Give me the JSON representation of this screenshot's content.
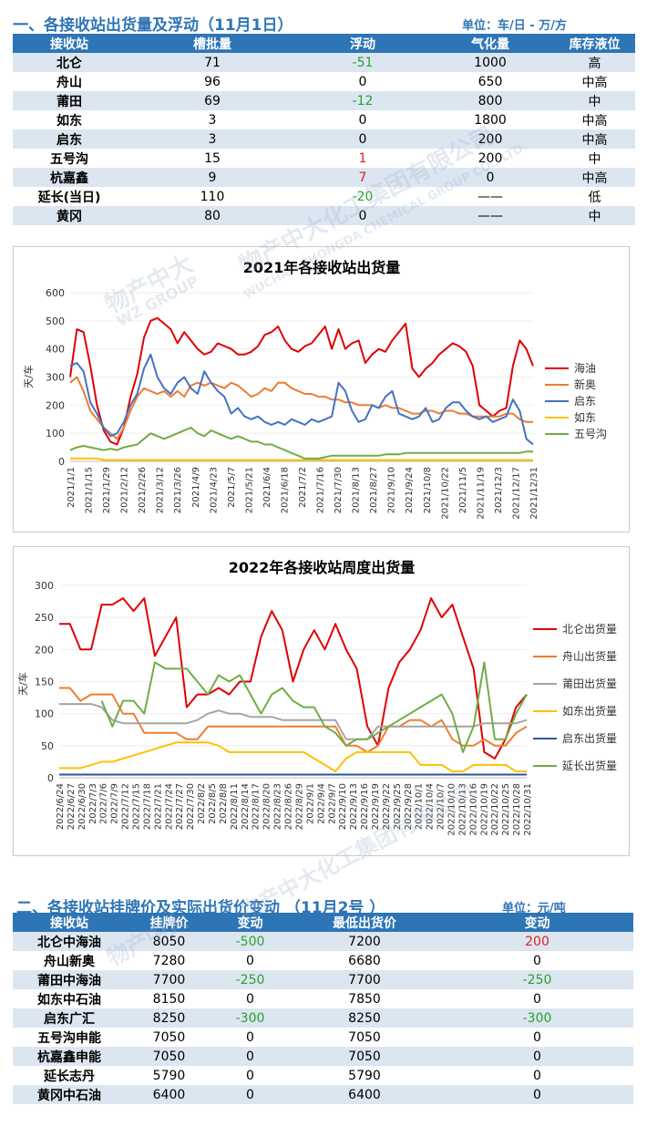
{
  "section1": {
    "title": "一、各接收站出货量及浮动（11月1日）",
    "unit": "单位：车/日 - 万/方",
    "headers": [
      "接收站",
      "槽批量",
      "浮动",
      "气化量",
      "库存液位"
    ],
    "rows": [
      {
        "name": "北仑",
        "volume": "71",
        "change": "-51",
        "change_sign": "neg",
        "gas": "1000",
        "level": "高"
      },
      {
        "name": "舟山",
        "volume": "96",
        "change": "0",
        "change_sign": "zero",
        "gas": "650",
        "level": "中高"
      },
      {
        "name": "莆田",
        "volume": "69",
        "change": "-12",
        "change_sign": "neg",
        "gas": "800",
        "level": "中"
      },
      {
        "name": "如东",
        "volume": "3",
        "change": "0",
        "change_sign": "zero",
        "gas": "1800",
        "level": "中高"
      },
      {
        "name": "启东",
        "volume": "3",
        "change": "0",
        "change_sign": "zero",
        "gas": "200",
        "level": "中高"
      },
      {
        "name": "五号沟",
        "volume": "15",
        "change": "1",
        "change_sign": "pos",
        "gas": "200",
        "level": "中"
      },
      {
        "name": "杭嘉鑫",
        "volume": "9",
        "change": "7",
        "change_sign": "pos",
        "gas": "0",
        "level": "中高"
      },
      {
        "name": "延长(当日)",
        "volume": "110",
        "change": "-20",
        "change_sign": "neg",
        "gas": "——",
        "level": "低"
      },
      {
        "name": "黄冈",
        "volume": "80",
        "change": "0",
        "change_sign": "zero",
        "gas": "——",
        "level": "中"
      }
    ]
  },
  "watermark": {
    "brand": "物产中大",
    "group": "WZ GROUP",
    "company": "物产中大化工集团有限公司",
    "company_en": "WUCHAN ZHONGDA CHEMICAL GROUP CO., LTD."
  },
  "chart_data": [
    {
      "type": "line",
      "title": "2021年各接收站出货量",
      "ylabel": "天/车",
      "ylim": [
        0,
        600
      ],
      "yticks": [
        0,
        100,
        200,
        300,
        400,
        500,
        600
      ],
      "xticks": [
        "2021/1/1",
        "2021/1/15",
        "2021/1/29",
        "2021/2/12",
        "2021/2/26",
        "2021/3/12",
        "2021/3/26",
        "2021/4/9",
        "2021/4/23",
        "2021/5/7",
        "2021/5/21",
        "2021/6/4",
        "2021/6/18",
        "2021/7/2",
        "2021/7/16",
        "2021/7/30",
        "2021/8/13",
        "2021/8/27",
        "2021/9/10",
        "2021/9/24",
        "2021/10/8",
        "2021/10/22",
        "2021/11/5",
        "2021/11/19",
        "2021/12/3",
        "2021/12/17",
        "2021/12/31"
      ],
      "legend_position": "right",
      "series": [
        {
          "name": "海油",
          "color": "#e00000",
          "values": [
            300,
            470,
            460,
            340,
            200,
            110,
            70,
            60,
            120,
            230,
            310,
            440,
            500,
            510,
            490,
            470,
            420,
            460,
            430,
            400,
            380,
            390,
            420,
            410,
            400,
            380,
            380,
            390,
            410,
            450,
            460,
            480,
            430,
            400,
            390,
            410,
            420,
            450,
            480,
            400,
            470,
            400,
            420,
            430,
            350,
            380,
            400,
            390,
            430,
            460,
            490,
            330,
            300,
            330,
            350,
            380,
            400,
            420,
            410,
            390,
            340,
            200,
            180,
            160,
            180,
            190,
            340,
            430,
            400,
            340
          ]
        },
        {
          "name": "新奥",
          "color": "#ed7d31",
          "values": [
            280,
            300,
            250,
            180,
            150,
            120,
            100,
            80,
            120,
            180,
            230,
            260,
            250,
            240,
            250,
            230,
            250,
            230,
            270,
            280,
            270,
            280,
            270,
            260,
            280,
            270,
            250,
            230,
            240,
            260,
            250,
            280,
            280,
            260,
            250,
            240,
            240,
            230,
            230,
            220,
            220,
            210,
            210,
            200,
            200,
            200,
            190,
            200,
            190,
            190,
            180,
            170,
            170,
            180,
            180,
            170,
            180,
            180,
            170,
            170,
            160,
            160,
            160,
            160,
            160,
            170,
            170,
            150,
            140,
            140
          ]
        },
        {
          "name": "启东",
          "color": "#4472c4",
          "values": [
            340,
            350,
            320,
            210,
            170,
            120,
            90,
            100,
            140,
            200,
            240,
            330,
            380,
            300,
            260,
            240,
            280,
            300,
            260,
            240,
            320,
            280,
            250,
            230,
            170,
            190,
            160,
            150,
            160,
            140,
            130,
            140,
            130,
            150,
            140,
            130,
            150,
            140,
            150,
            160,
            280,
            250,
            180,
            140,
            150,
            200,
            190,
            230,
            250,
            170,
            160,
            150,
            160,
            190,
            140,
            150,
            190,
            210,
            210,
            180,
            160,
            150,
            160,
            140,
            150,
            160,
            220,
            180,
            80,
            60
          ]
        },
        {
          "name": "如东",
          "color": "#ffc000",
          "values": [
            10,
            10,
            10,
            10,
            10,
            5,
            5,
            5,
            5,
            5,
            5,
            5,
            5,
            5,
            5,
            5,
            5,
            5,
            5,
            5,
            5,
            5,
            5,
            5,
            5,
            5,
            5,
            5,
            5,
            5,
            5,
            5,
            5,
            5,
            5,
            5,
            5,
            5,
            5,
            5,
            5,
            5,
            5,
            5,
            5,
            5,
            5,
            5,
            5,
            5,
            5,
            5,
            5,
            5,
            5,
            5,
            5,
            5,
            5,
            5,
            5,
            5,
            5,
            5,
            5,
            5,
            5,
            5,
            5,
            5
          ]
        },
        {
          "name": "五号沟",
          "color": "#70ad47",
          "values": [
            40,
            50,
            55,
            50,
            45,
            40,
            45,
            40,
            50,
            55,
            60,
            80,
            100,
            90,
            80,
            90,
            100,
            110,
            120,
            100,
            90,
            110,
            100,
            90,
            80,
            90,
            80,
            70,
            70,
            60,
            60,
            50,
            40,
            30,
            20,
            10,
            10,
            10,
            15,
            20,
            20,
            20,
            20,
            20,
            20,
            20,
            20,
            25,
            25,
            25,
            30,
            30,
            30,
            30,
            30,
            30,
            30,
            30,
            30,
            30,
            30,
            30,
            30,
            30,
            30,
            30,
            30,
            30,
            35,
            35
          ]
        }
      ]
    },
    {
      "type": "line",
      "title": "2022年各接收站周度出货量",
      "ylabel": "天/车",
      "ylim": [
        0,
        300
      ],
      "yticks": [
        0,
        50,
        100,
        150,
        200,
        250,
        300
      ],
      "xticks": [
        "2022/6/24",
        "2022/6/27",
        "2022/6/30",
        "2022/7/3",
        "2022/7/6",
        "2022/7/9",
        "2022/7/12",
        "2022/7/15",
        "2022/7/18",
        "2022/7/21",
        "2022/7/24",
        "2022/7/27",
        "2022/7/30",
        "2022/8/2",
        "2022/8/5",
        "2022/8/8",
        "2022/8/11",
        "2022/8/14",
        "2022/8/17",
        "2022/8/20",
        "2022/8/23",
        "2022/8/26",
        "2022/8/29",
        "2022/9/1",
        "2022/9/4",
        "2022/9/7",
        "2022/9/10",
        "2022/9/13",
        "2022/9/16",
        "2022/9/19",
        "2022/9/22",
        "2022/9/25",
        "2022/9/28",
        "2022/10/1",
        "2022/10/4",
        "2022/10/7",
        "2022/10/10",
        "2022/10/13",
        "2022/10/16",
        "2022/10/19",
        "2022/10/22",
        "2022/10/25",
        "2022/10/28",
        "2022/10/31"
      ],
      "legend_position": "right",
      "series": [
        {
          "name": "北仑出货量",
          "color": "#e00000",
          "values": [
            240,
            240,
            200,
            200,
            270,
            270,
            280,
            260,
            280,
            190,
            220,
            250,
            110,
            130,
            130,
            140,
            130,
            150,
            150,
            220,
            260,
            230,
            150,
            200,
            230,
            200,
            240,
            200,
            170,
            80,
            50,
            140,
            180,
            200,
            230,
            280,
            250,
            270,
            220,
            170,
            40,
            30,
            60,
            110,
            130
          ]
        },
        {
          "name": "舟山出货量",
          "color": "#ed7d31",
          "values": [
            140,
            140,
            120,
            130,
            130,
            130,
            100,
            100,
            70,
            70,
            70,
            70,
            60,
            60,
            80,
            80,
            80,
            80,
            80,
            80,
            80,
            80,
            80,
            80,
            80,
            80,
            80,
            50,
            50,
            40,
            50,
            80,
            80,
            90,
            90,
            80,
            90,
            60,
            50,
            50,
            60,
            50,
            50,
            70,
            80
          ]
        },
        {
          "name": "莆田出货量",
          "color": "#a5a5a5",
          "values": [
            115,
            115,
            115,
            115,
            110,
            90,
            85,
            85,
            85,
            85,
            85,
            85,
            85,
            90,
            100,
            105,
            100,
            100,
            95,
            95,
            95,
            90,
            90,
            90,
            90,
            90,
            90,
            60,
            60,
            60,
            80,
            80,
            80,
            80,
            80,
            80,
            80,
            80,
            80,
            80,
            85,
            85,
            85,
            85,
            90
          ]
        },
        {
          "name": "如东出货量",
          "color": "#ffc000",
          "values": [
            15,
            15,
            15,
            20,
            25,
            25,
            30,
            35,
            40,
            45,
            50,
            55,
            55,
            55,
            55,
            50,
            40,
            40,
            40,
            40,
            40,
            40,
            40,
            40,
            30,
            20,
            10,
            30,
            40,
            40,
            40,
            40,
            40,
            40,
            20,
            20,
            20,
            10,
            10,
            20,
            20,
            20,
            20,
            10,
            10
          ]
        },
        {
          "name": "启东出货量",
          "color": "#2e5597",
          "values": [
            5,
            5,
            5,
            5,
            5,
            5,
            5,
            5,
            5,
            5,
            5,
            5,
            5,
            5,
            5,
            5,
            5,
            5,
            5,
            5,
            5,
            5,
            5,
            5,
            5,
            5,
            5,
            5,
            5,
            5,
            5,
            5,
            5,
            5,
            5,
            5,
            5,
            5,
            5,
            5,
            5,
            5,
            5,
            5,
            5
          ]
        },
        {
          "name": "延长出货量",
          "color": "#70ad47",
          "values": [
            null,
            null,
            null,
            null,
            120,
            80,
            120,
            120,
            100,
            180,
            170,
            170,
            170,
            150,
            130,
            160,
            150,
            160,
            130,
            100,
            130,
            140,
            120,
            110,
            110,
            80,
            70,
            50,
            60,
            60,
            70,
            80,
            90,
            100,
            110,
            120,
            130,
            100,
            40,
            80,
            180,
            60,
            60,
            100,
            130
          ]
        }
      ]
    }
  ],
  "section2": {
    "title": "二、各接收站挂牌价及实际出货价变动 （11月2号 ）",
    "unit": "单位：元/吨",
    "headers": [
      "接收站",
      "挂牌价",
      "变动",
      "最低出货价",
      "变动"
    ],
    "rows": [
      {
        "name": "北仑中海油",
        "list": "8050",
        "list_change": "-500",
        "list_sign": "neg",
        "low": "7200",
        "low_change": "200",
        "low_sign": "pos"
      },
      {
        "name": "舟山新奥",
        "list": "7280",
        "list_change": "0",
        "list_sign": "zero",
        "low": "6680",
        "low_change": "0",
        "low_sign": "zero"
      },
      {
        "name": "莆田中海油",
        "list": "7700",
        "list_change": "-250",
        "list_sign": "neg",
        "low": "7700",
        "low_change": "-250",
        "low_sign": "neg"
      },
      {
        "name": "如东中石油",
        "list": "8150",
        "list_change": "0",
        "list_sign": "zero",
        "low": "7850",
        "low_change": "0",
        "low_sign": "zero"
      },
      {
        "name": "启东广汇",
        "list": "8250",
        "list_change": "-300",
        "list_sign": "neg",
        "low": "8250",
        "low_change": "-300",
        "low_sign": "neg"
      },
      {
        "name": "五号沟申能",
        "list": "7050",
        "list_change": "0",
        "list_sign": "zero",
        "low": "7050",
        "low_change": "0",
        "low_sign": "zero"
      },
      {
        "name": "杭嘉鑫申能",
        "list": "7050",
        "list_change": "0",
        "list_sign": "zero",
        "low": "7050",
        "low_change": "0",
        "low_sign": "zero"
      },
      {
        "name": "延长志丹",
        "list": "5790",
        "list_change": "0",
        "list_sign": "zero",
        "low": "5790",
        "low_change": "0",
        "low_sign": "zero"
      },
      {
        "name": "黄冈中石油",
        "list": "6400",
        "list_change": "0",
        "list_sign": "zero",
        "low": "6400",
        "low_change": "0",
        "low_sign": "zero"
      }
    ]
  }
}
